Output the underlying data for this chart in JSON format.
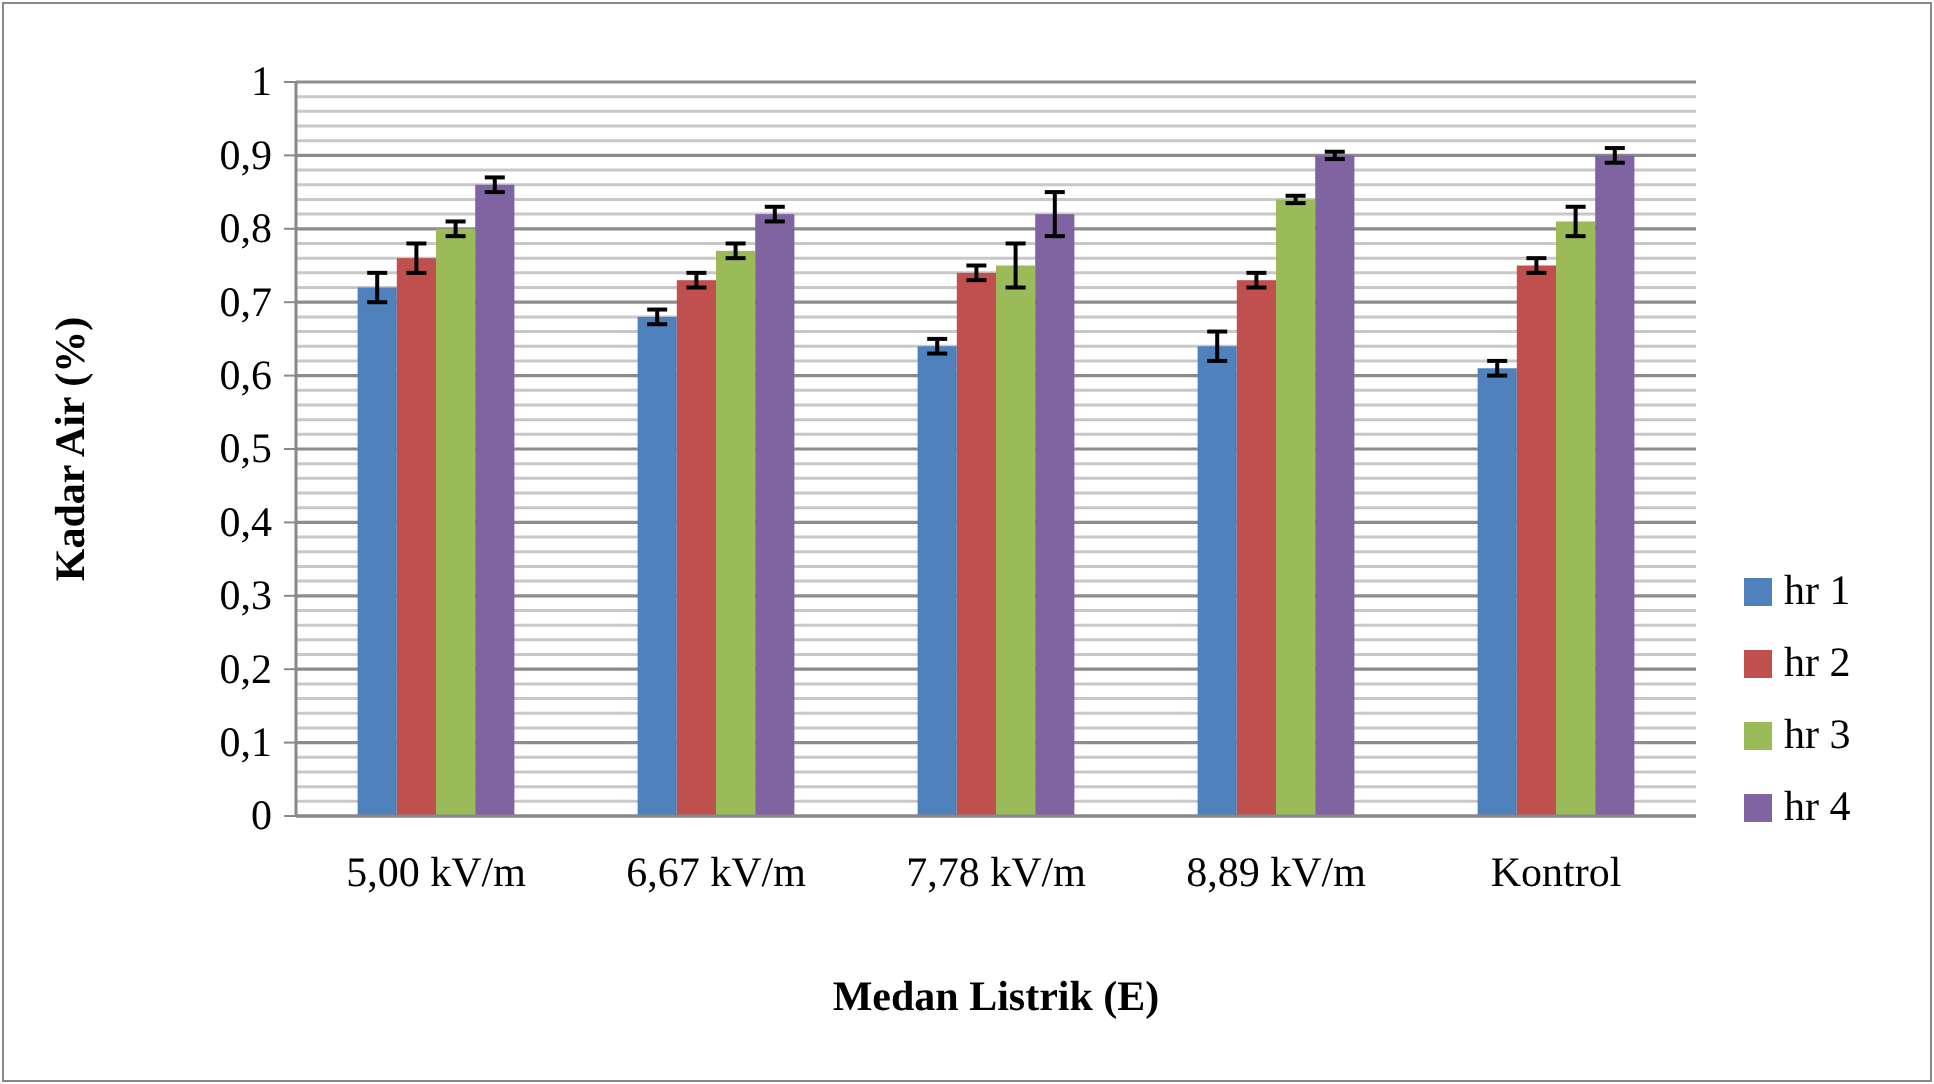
{
  "chart_data": {
    "type": "bar",
    "xlabel": "Medan Listrik (E)",
    "ylabel": "Kadar Air (%)",
    "categories": [
      "5,00 kV/m",
      "6,67 kV/m",
      "7,78 kV/m",
      "8,89 kV/m",
      "Kontrol"
    ],
    "series": [
      {
        "name": "hr 1",
        "color": "#4f81bd",
        "values": [
          0.72,
          0.68,
          0.64,
          0.64,
          0.61
        ],
        "errors": [
          0.02,
          0.01,
          0.01,
          0.02,
          0.01
        ]
      },
      {
        "name": "hr 2",
        "color": "#c0504d",
        "values": [
          0.76,
          0.73,
          0.74,
          0.73,
          0.75
        ],
        "errors": [
          0.02,
          0.01,
          0.01,
          0.01,
          0.01
        ]
      },
      {
        "name": "hr 3",
        "color": "#9bbb59",
        "values": [
          0.8,
          0.77,
          0.75,
          0.84,
          0.81
        ],
        "errors": [
          0.01,
          0.01,
          0.03,
          0.005,
          0.02
        ]
      },
      {
        "name": "hr 4",
        "color": "#8064a2",
        "values": [
          0.86,
          0.82,
          0.82,
          0.9,
          0.9
        ],
        "errors": [
          0.01,
          0.01,
          0.03,
          0.005,
          0.01
        ]
      }
    ],
    "ylim": [
      0,
      1
    ],
    "yticks": [
      0,
      {
        "value": 0.02,
        "label": null
      },
      {
        "value": 0.04,
        "label": null
      },
      {
        "value": 0.06,
        "label": null
      },
      {
        "value": 0.08,
        "label": null
      },
      {
        "value": 0.1,
        "label": "0,1"
      },
      {
        "value": 0.12,
        "label": null
      },
      {
        "value": 0.14,
        "label": null
      },
      {
        "value": 0.16,
        "label": null
      },
      {
        "value": 0.18,
        "label": null
      },
      {
        "value": 0.2,
        "label": "0,2"
      },
      {
        "value": 0.22,
        "label": null
      },
      {
        "value": 0.24,
        "label": null
      },
      {
        "value": 0.26,
        "label": null
      },
      {
        "value": 0.28,
        "label": null
      },
      {
        "value": 0.3,
        "label": "0,3"
      },
      {
        "value": 0.32,
        "label": null
      },
      {
        "value": 0.34,
        "label": null
      },
      {
        "value": 0.36,
        "label": null
      },
      {
        "value": 0.38,
        "label": null
      },
      {
        "value": 0.4,
        "label": "0,4"
      },
      {
        "value": 0.42,
        "label": null
      },
      {
        "value": 0.44,
        "label": null
      },
      {
        "value": 0.46,
        "label": null
      },
      {
        "value": 0.48,
        "label": null
      },
      {
        "value": 0.5,
        "label": "0,5"
      },
      {
        "value": 0.52,
        "label": null
      },
      {
        "value": 0.54,
        "label": null
      },
      {
        "value": 0.56,
        "label": null
      },
      {
        "value": 0.58,
        "label": null
      },
      {
        "value": 0.6,
        "label": "0,6"
      },
      {
        "value": 0.62,
        "label": null
      },
      {
        "value": 0.64,
        "label": null
      },
      {
        "value": 0.66,
        "label": null
      },
      {
        "value": 0.68,
        "label": null
      },
      {
        "value": 0.7,
        "label": "0,7"
      },
      {
        "value": 0.72,
        "label": null
      },
      {
        "value": 0.74,
        "label": null
      },
      {
        "value": 0.76,
        "label": null
      },
      {
        "value": 0.78,
        "label": null
      },
      {
        "value": 0.8,
        "label": "0,8"
      },
      {
        "value": 0.82,
        "label": null
      },
      {
        "value": 0.84,
        "label": null
      },
      {
        "value": 0.86,
        "label": null
      },
      {
        "value": 0.88,
        "label": null
      },
      {
        "value": 0.9,
        "label": "0,9"
      },
      {
        "value": 0.92,
        "label": null
      },
      {
        "value": 0.94,
        "label": null
      },
      {
        "value": 0.96,
        "label": null
      },
      {
        "value": 0.98,
        "label": null
      },
      1
    ],
    "grid": "y",
    "legend": "right"
  }
}
